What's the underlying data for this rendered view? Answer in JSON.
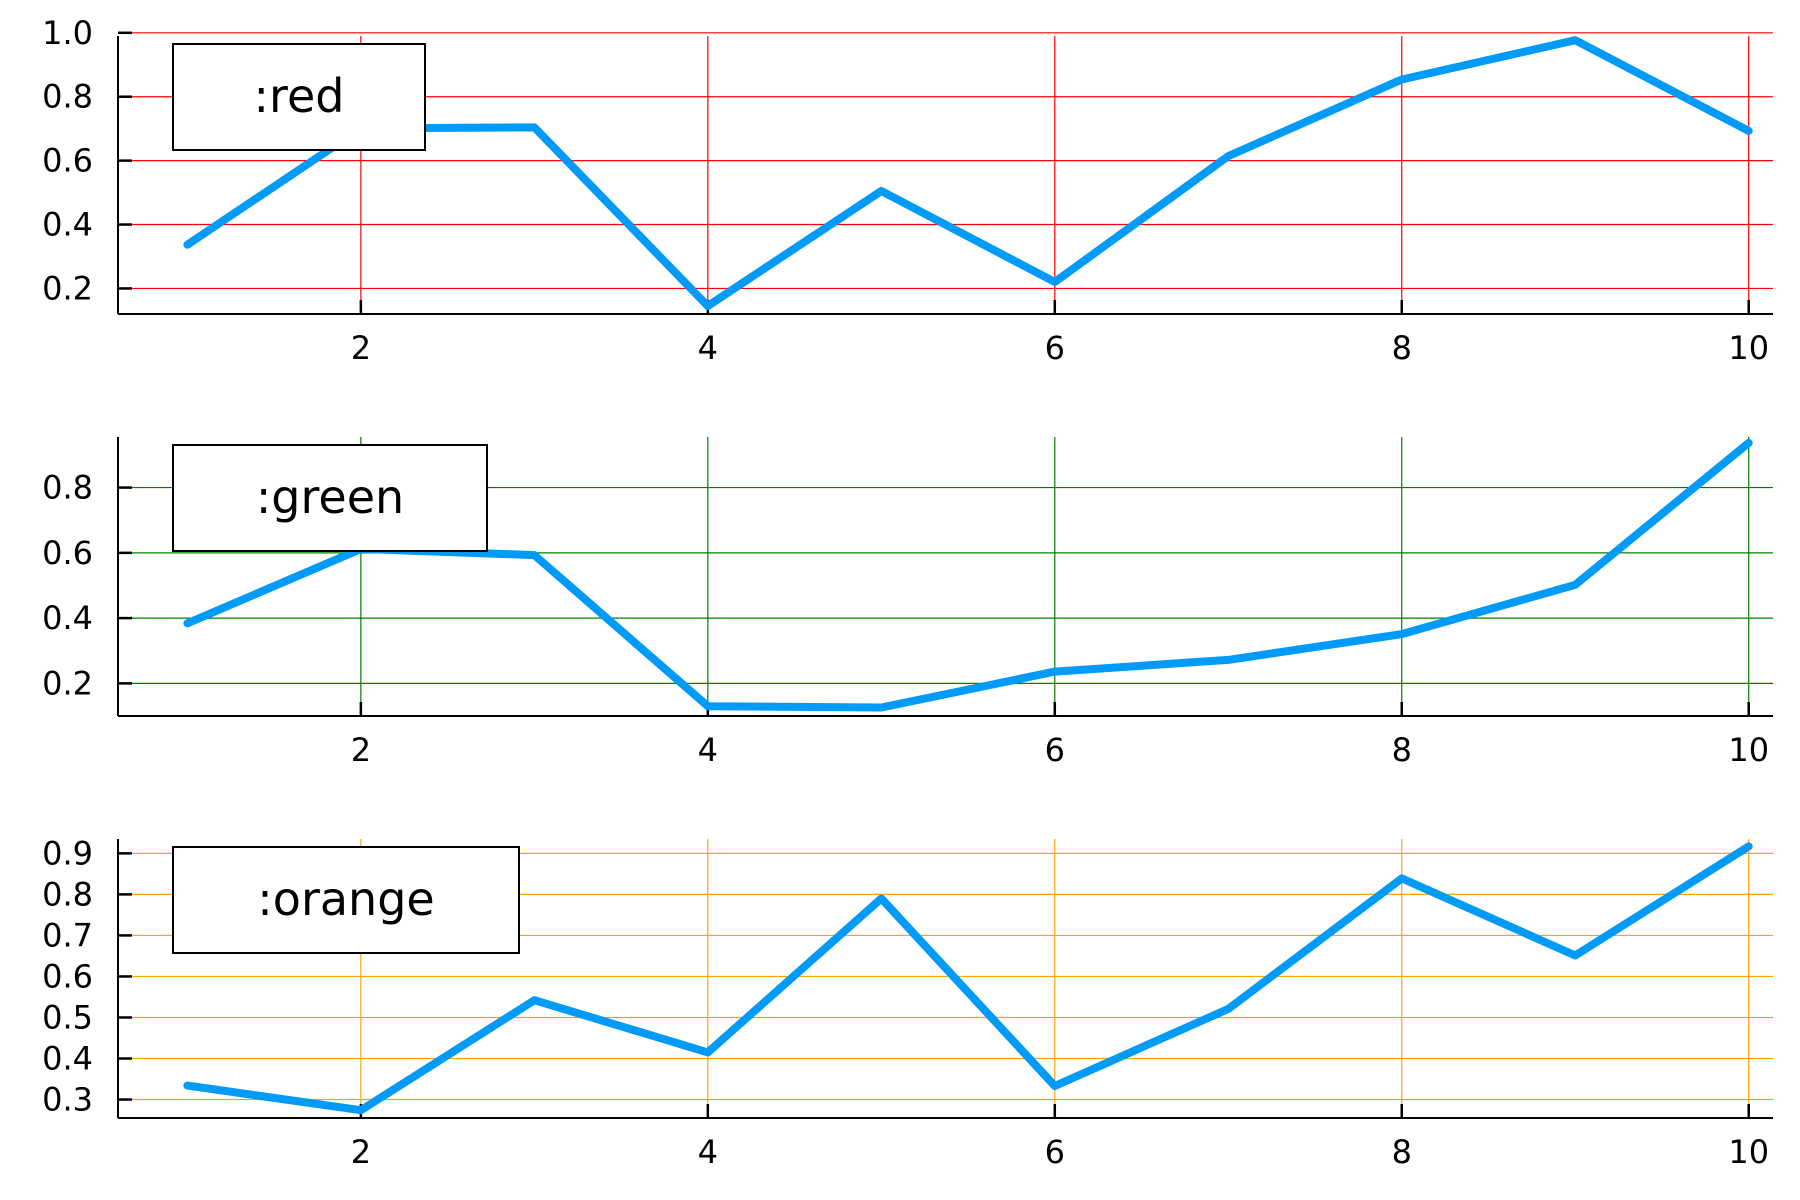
{
  "chart_data": [
    {
      "type": "line",
      "title": "",
      "xlabel": "",
      "ylabel": "",
      "x": [
        1,
        2,
        3,
        4,
        5,
        6,
        7,
        8,
        9,
        10
      ],
      "xlim": [
        0.6,
        10.14
      ],
      "ylim": [
        0.12,
        0.99
      ],
      "xticks": [
        2,
        4,
        6,
        8,
        10
      ],
      "yticks": [
        0.2,
        0.4,
        0.6,
        0.8,
        1.0
      ],
      "ytick_labels": [
        "0.2",
        "0.4",
        "0.6",
        "0.8",
        "1.0"
      ],
      "grid": true,
      "grid_color": "#ff0000",
      "legend_placement": "top-left",
      "series": [
        {
          "name": ":red",
          "color": "#009af9",
          "values": [
            0.337,
            0.701,
            0.704,
            0.145,
            0.505,
            0.22,
            0.614,
            0.854,
            0.977,
            0.693
          ]
        }
      ]
    },
    {
      "type": "line",
      "title": "",
      "xlabel": "",
      "ylabel": "",
      "x": [
        1,
        2,
        3,
        4,
        5,
        6,
        7,
        8,
        9,
        10
      ],
      "xlim": [
        0.6,
        10.14
      ],
      "ylim": [
        0.1,
        0.955
      ],
      "xticks": [
        2,
        4,
        6,
        8,
        10
      ],
      "yticks": [
        0.2,
        0.4,
        0.6,
        0.8
      ],
      "ytick_labels": [
        "0.2",
        "0.4",
        "0.6",
        "0.8"
      ],
      "grid": true,
      "grid_color": "#008000",
      "legend_placement": "top-left",
      "series": [
        {
          "name": ":green",
          "color": "#009af9",
          "values": [
            0.384,
            0.612,
            0.593,
            0.13,
            0.126,
            0.236,
            0.272,
            0.351,
            0.502,
            0.937
          ]
        }
      ]
    },
    {
      "type": "line",
      "title": "",
      "xlabel": "",
      "ylabel": "",
      "x": [
        1,
        2,
        3,
        4,
        5,
        6,
        7,
        8,
        9,
        10
      ],
      "xlim": [
        0.6,
        10.14
      ],
      "ylim": [
        0.255,
        0.935
      ],
      "xticks": [
        2,
        4,
        6,
        8,
        10
      ],
      "yticks": [
        0.3,
        0.4,
        0.5,
        0.6,
        0.7,
        0.8,
        0.9
      ],
      "ytick_labels": [
        "0.3",
        "0.4",
        "0.5",
        "0.6",
        "0.7",
        "0.8",
        "0.9"
      ],
      "grid": true,
      "grid_color": "#ffa500",
      "legend_placement": "top-left",
      "series": [
        {
          "name": ":orange",
          "color": "#009af9",
          "values": [
            0.334,
            0.274,
            0.542,
            0.415,
            0.79,
            0.333,
            0.521,
            0.839,
            0.651,
            0.917
          ]
        }
      ]
    }
  ]
}
